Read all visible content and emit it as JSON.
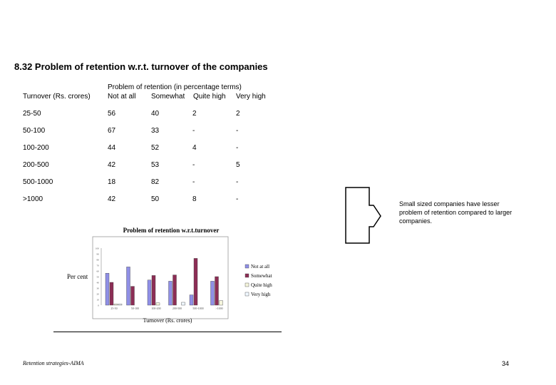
{
  "title": "8.32 Problem of retention w.r.t. turnover of the companies",
  "table": {
    "group_header": "Problem of retention (in percentage terms)",
    "row_header": "Turnover (Rs. crores)",
    "columns": [
      "Not at all",
      "Somewhat",
      "Quite high",
      "Very high"
    ],
    "rows": [
      {
        "label": "25-50",
        "values": [
          "56",
          "40",
          "2",
          "2"
        ]
      },
      {
        "label": "50-100",
        "values": [
          "67",
          "33",
          "-",
          "-"
        ]
      },
      {
        "label": "100-200",
        "values": [
          "44",
          "52",
          "4",
          "-"
        ]
      },
      {
        "label": "200-500",
        "values": [
          "42",
          "53",
          "-",
          "5"
        ]
      },
      {
        "label": "500-1000",
        "values": [
          "18",
          "82",
          "-",
          "-"
        ]
      },
      {
        "label": ">1000",
        "values": [
          "42",
          "50",
          "8",
          "-"
        ]
      }
    ]
  },
  "note": "Small sized companies have lesser problem of retention compared to larger companies.",
  "chart_data": {
    "type": "bar",
    "title": "Problem of retention w.r.t.turnover",
    "xlabel": "Turnover (Rs. crores)",
    "ylabel": "Per cent",
    "categories": [
      "25-50",
      "50-100",
      "100-200",
      "200-500",
      "500-1000",
      ">1000"
    ],
    "series": [
      {
        "name": "Not at all",
        "values": [
          56,
          67,
          44,
          42,
          18,
          42
        ],
        "color": "#8f8fe6"
      },
      {
        "name": "Somewhat",
        "values": [
          40,
          33,
          52,
          53,
          82,
          50
        ],
        "color": "#8c2d55"
      },
      {
        "name": "Quite high",
        "values": [
          2,
          0,
          4,
          0,
          0,
          8
        ],
        "color": "#f5f5dc"
      },
      {
        "name": "Very high",
        "values": [
          2,
          0,
          0,
          5,
          0,
          0
        ],
        "color": "#f0f8ff"
      }
    ],
    "ylim": [
      0,
      100
    ],
    "yticks": [
      "0",
      "10",
      "20",
      "30",
      "40",
      "50",
      "60",
      "70",
      "80",
      "90",
      "100"
    ],
    "legend_position": "right",
    "grid": false
  },
  "footer": {
    "left": "Retention strategies-AIMA",
    "page_number": "34"
  }
}
